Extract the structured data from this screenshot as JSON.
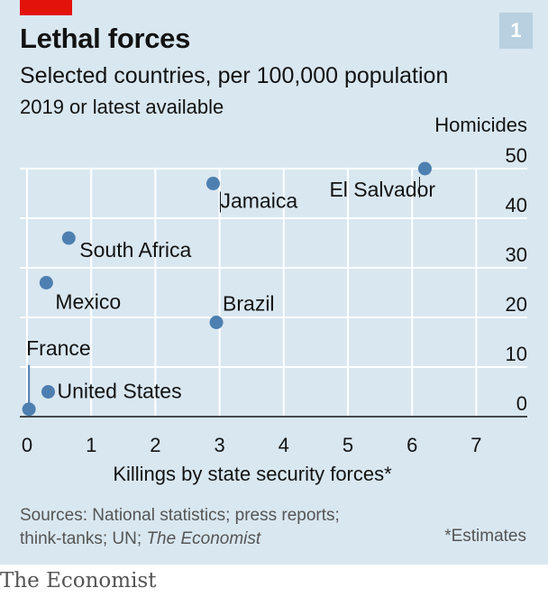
{
  "header": {
    "title": "Lethal forces",
    "subtitle": "Selected countries, per 100,000 population",
    "note": "2019 or latest available",
    "badge": "1"
  },
  "chart_data": {
    "type": "scatter",
    "ylabel": "Homicides",
    "xlabel": "Killings by state security forces*",
    "xlim": [
      0,
      7.5
    ],
    "ylim": [
      0,
      50
    ],
    "x_ticks": [
      "0",
      "1",
      "2",
      "3",
      "4",
      "5",
      "6",
      "7"
    ],
    "y_ticks": [
      "0",
      "10",
      "20",
      "30",
      "40",
      "50"
    ],
    "grid": true,
    "point_color": "#4d7fb0",
    "points": [
      {
        "label": "El Salvador",
        "x": 6.2,
        "y": 50.0
      },
      {
        "label": "Jamaica",
        "x": 2.9,
        "y": 47.0
      },
      {
        "label": "South Africa",
        "x": 0.65,
        "y": 36.0
      },
      {
        "label": "Mexico",
        "x": 0.3,
        "y": 27.0
      },
      {
        "label": "Brazil",
        "x": 2.95,
        "y": 19.0
      },
      {
        "label": "United States",
        "x": 0.33,
        "y": 5.0
      },
      {
        "label": "France",
        "x": 0.03,
        "y": 1.5
      }
    ]
  },
  "footer": {
    "sources_line1": "Sources: National statistics; press reports;",
    "sources_line2_prefix": "think-tanks; UN; ",
    "sources_line2_italic": "The Economist",
    "estimates": "*Estimates",
    "brand": "The Economist"
  }
}
